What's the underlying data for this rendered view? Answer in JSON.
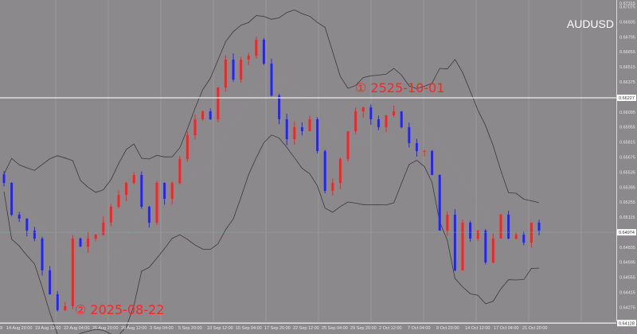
{
  "chart_data": {
    "type": "candlestick",
    "title": "AUDUSD",
    "colors": {
      "background": "#8b898b",
      "bull": "#ff2020",
      "bear": "#2323ff",
      "bands": "#3a3a3a",
      "grid": "#9a989a",
      "hline": "#f0f0f0",
      "current_line": "#7fb8a8",
      "annotation": "#ff2424"
    },
    "indicator": "Bollinger Bands",
    "ylim": [
      0.64128,
      0.67315
    ],
    "y_ticks": [
      "0.67315",
      "0.67075",
      "0.66935",
      "0.66795",
      "0.66655",
      "0.66515",
      "0.66375",
      "0.66095",
      "0.65955",
      "0.65815",
      "0.65675",
      "0.65535",
      "0.65395",
      "0.65255",
      "0.65115",
      "0.64835",
      "0.64695",
      "0.64555",
      "0.64415",
      "0.64275"
    ],
    "y_tick_values": [
      0.67315,
      0.67075,
      0.66935,
      0.66795,
      0.66655,
      0.66515,
      0.66375,
      0.66095,
      0.65955,
      0.65815,
      0.65675,
      0.65535,
      0.65395,
      0.65255,
      0.65115,
      0.64835,
      0.64695,
      0.64555,
      0.64415,
      0.64275
    ],
    "highlighted_prices": [
      "0.66227",
      "0.64974",
      "0.64128"
    ],
    "highlighted_values": [
      0.66227,
      0.64974,
      0.64128
    ],
    "x_ticks": [
      "9",
      "14 Aug 20:00",
      "19 Aug 12:00",
      "22 Aug 04:00",
      "26 Aug 20:00",
      "29 Aug 12:00",
      "3 Sep 04:00",
      "5 Sep 20:00",
      "10 Sep 12:00",
      "15 Sep 04:00",
      "17 Sep 20:00",
      "22 Sep 12:00",
      "25 Sep 04:00",
      "29 Sep 20:00",
      "2 Oct 12:00",
      "7 Oct 04:00",
      "9 Oct 20:00",
      "14 Oct 12:00",
      "17 Oct 04:00",
      "21 Oct 20:00"
    ],
    "closes": [
      0.65434,
      0.65138,
      0.65101,
      0.6499,
      0.64915,
      0.64619,
      0.64397,
      0.64249,
      0.64286,
      0.64915,
      0.64841,
      0.64915,
      0.64952,
      0.65064,
      0.65212,
      0.65323,
      0.65434,
      0.65508,
      0.65212,
      0.65064,
      0.65434,
      0.65286,
      0.65434,
      0.65656,
      0.65879,
      0.66027,
      0.66101,
      0.66027,
      0.66323,
      0.66583,
      0.66397,
      0.66583,
      0.6662,
      0.66768,
      0.66546,
      0.66249,
      0.66027,
      0.65842,
      0.65953,
      0.65916,
      0.66027,
      0.65731,
      0.6536,
      0.65434,
      0.65656,
      0.65916,
      0.66101,
      0.66138,
      0.66027,
      0.65953,
      0.66064,
      0.66101,
      0.65953,
      0.65805,
      0.65731,
      0.65731,
      0.65508,
      0.6499,
      0.65138,
      0.64619,
      0.65064,
      0.64915,
      0.6499,
      0.64693,
      0.64915,
      0.65138,
      0.64915,
      0.64952,
      0.64878,
      0.65064,
      0.6499
    ],
    "annotations": [
      {
        "text": "① 2525-10-01",
        "price": 0.66227
      },
      {
        "text": "② 2025-08-22",
        "price": 0.64128
      }
    ]
  }
}
